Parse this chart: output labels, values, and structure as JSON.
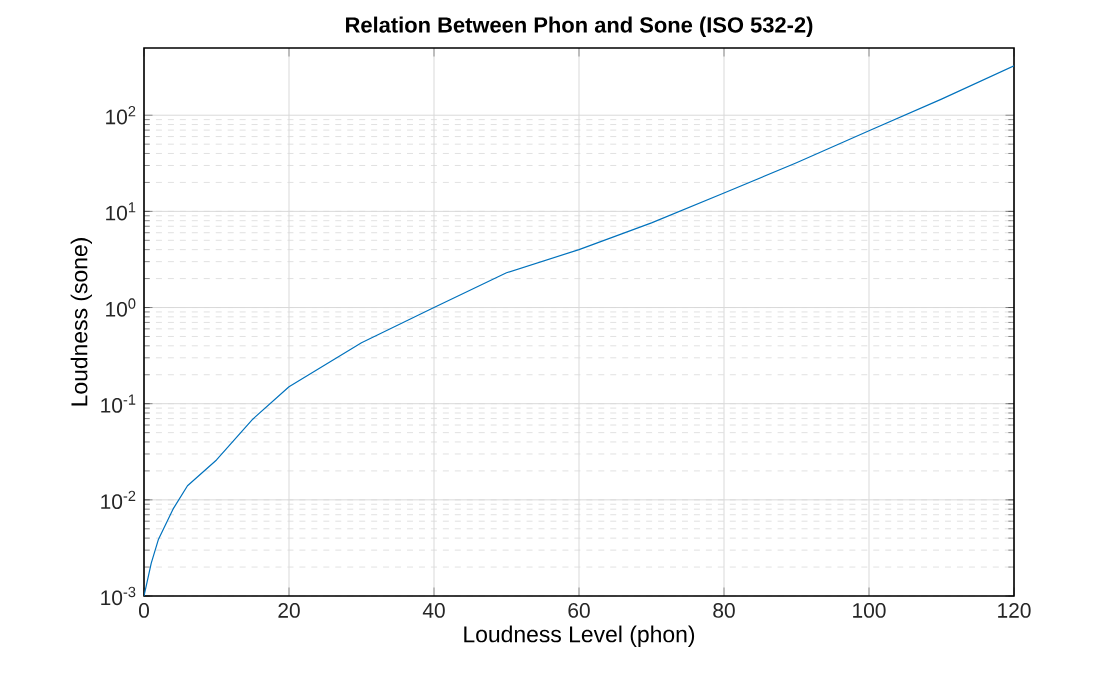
{
  "chart_data": {
    "type": "line",
    "title": "Relation Between Phon and Sone (ISO 532-2)",
    "xlabel": "Loudness Level (phon)",
    "ylabel": "Loudness (sone)",
    "log": "y",
    "grid": true,
    "xlim": [
      0,
      120
    ],
    "ylim": [
      0.001,
      500
    ],
    "xticks": [
      0,
      20,
      40,
      60,
      80,
      100,
      120
    ],
    "yticks": [
      {
        "value": 0.001,
        "label": "10$^{-3}$"
      },
      {
        "value": 0.01,
        "label": "10$^{-2}$"
      },
      {
        "value": 0.1,
        "label": "10$^{-1}$"
      },
      {
        "value": 1,
        "label": "10$^{0}$"
      },
      {
        "value": 10,
        "label": "10$^{1}$"
      },
      {
        "value": 100,
        "label": "10$^{2}$"
      }
    ],
    "x": [
      0,
      1,
      2,
      4,
      6,
      10,
      15,
      20,
      30,
      40,
      50,
      60,
      70,
      80,
      90,
      100,
      110,
      120
    ],
    "series": [
      {
        "color": "#0072bd",
        "values": [
          0.001,
          0.0022,
          0.0039,
          0.008,
          0.014,
          0.026,
          0.069,
          0.15,
          0.43,
          1,
          2.3,
          4.0,
          7.6,
          15.5,
          32,
          69,
          147,
          327
        ]
      }
    ]
  }
}
